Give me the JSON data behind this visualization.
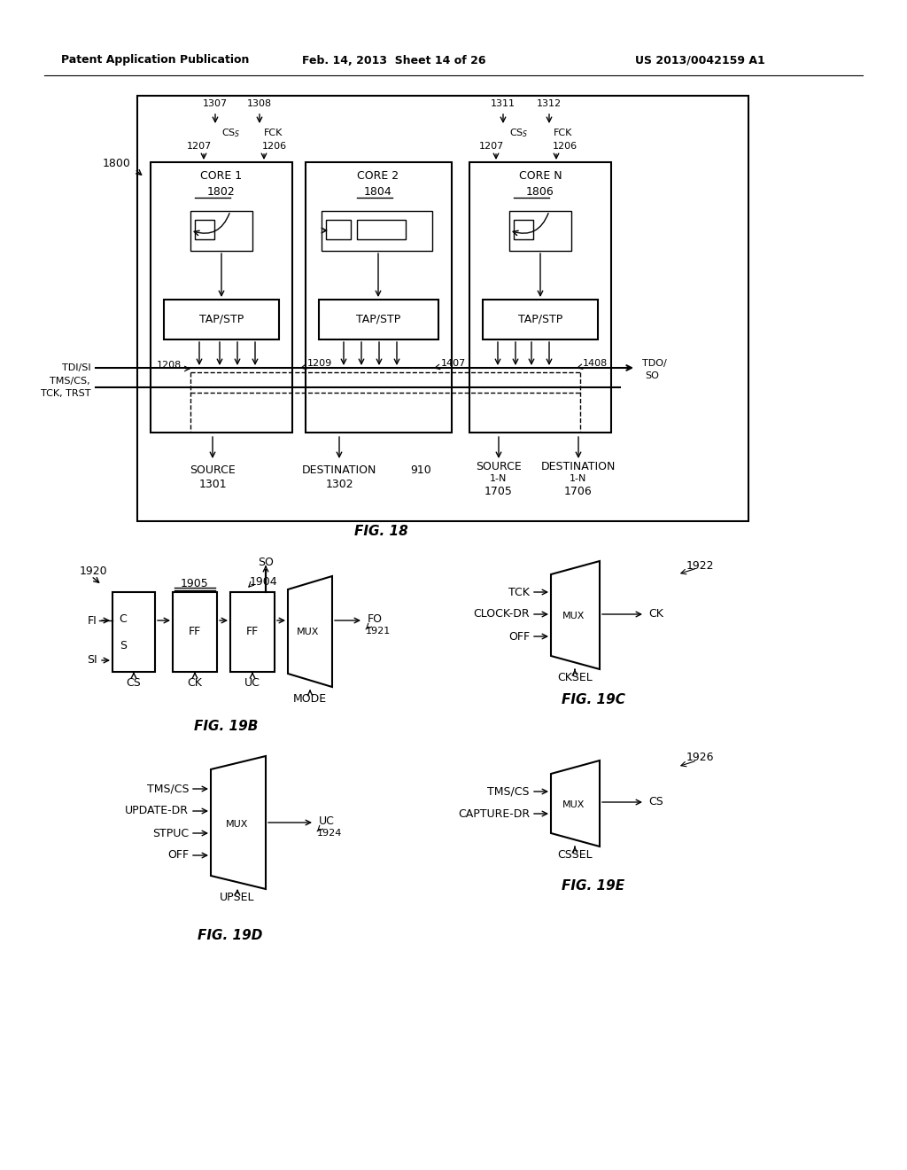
{
  "bg_color": "#ffffff",
  "header_left": "Patent Application Publication",
  "header_center": "Feb. 14, 2013  Sheet 14 of 26",
  "header_right": "US 2013/0042159 A1",
  "fig18_caption": "FIG. 18",
  "fig19b_caption": "FIG. 19B",
  "fig19c_caption": "FIG. 19C",
  "fig19d_caption": "FIG. 19D",
  "fig19e_caption": "FIG. 19E"
}
